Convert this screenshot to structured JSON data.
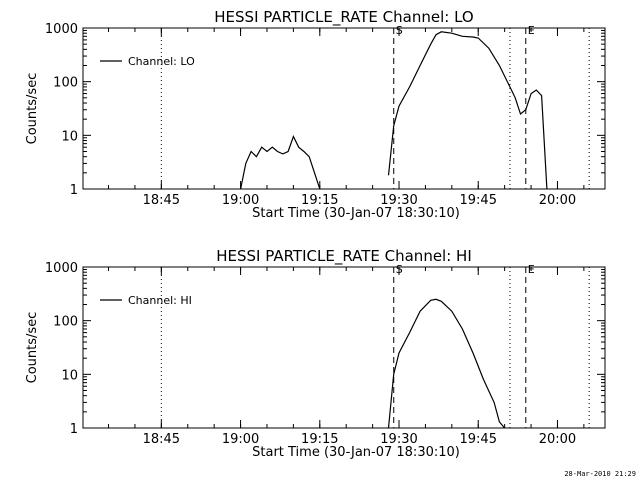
{
  "footer_timestamp": "28-Mar-2010 21:29",
  "chart_data": [
    {
      "type": "line",
      "title": "HESSI PARTICLE_RATE Channel: LO",
      "xlabel": "Start Time (30-Jan-07 18:30:10)",
      "ylabel": "Counts/sec",
      "y_scale": "log",
      "ylim": [
        1,
        1000
      ],
      "xlim": [
        "18:30:10",
        "20:09:00"
      ],
      "x_ticks": [
        "18:45",
        "19:00",
        "19:15",
        "19:30",
        "19:45",
        "20:00"
      ],
      "y_ticks": [
        "1",
        "10",
        "100",
        "1000"
      ],
      "legend": {
        "label": "Channel: LO",
        "position": "top-left"
      },
      "markers": [
        {
          "time": "18:45",
          "style": "dotted",
          "label": ""
        },
        {
          "time": "19:29",
          "style": "dashed",
          "label": "S"
        },
        {
          "time": "19:51",
          "style": "dotted",
          "label": ""
        },
        {
          "time": "19:54",
          "style": "dashed",
          "label": "E"
        },
        {
          "time": "20:06",
          "style": "dotted",
          "label": ""
        }
      ],
      "segments": [
        [
          [
            "19:00",
            1
          ],
          [
            "19:01",
            3
          ],
          [
            "19:02",
            5
          ],
          [
            "19:03",
            4
          ],
          [
            "19:04",
            6
          ],
          [
            "19:05",
            5
          ],
          [
            "19:06",
            6
          ],
          [
            "19:07",
            5
          ],
          [
            "19:08",
            4.5
          ],
          [
            "19:09",
            5
          ],
          [
            "19:10",
            9.5
          ],
          [
            "19:11",
            6
          ],
          [
            "19:12",
            5
          ],
          [
            "19:13",
            4
          ],
          [
            "19:14",
            2
          ],
          [
            "19:15",
            1
          ]
        ],
        [
          [
            "19:28",
            1.8
          ],
          [
            "19:29",
            15
          ],
          [
            "19:30",
            35
          ],
          [
            "19:32",
            80
          ],
          [
            "19:34",
            200
          ],
          [
            "19:36",
            500
          ],
          [
            "19:37",
            750
          ],
          [
            "19:38",
            850
          ],
          [
            "19:40",
            800
          ],
          [
            "19:42",
            700
          ],
          [
            "19:44",
            680
          ],
          [
            "19:45",
            650
          ],
          [
            "19:47",
            420
          ],
          [
            "19:49",
            200
          ],
          [
            "19:51",
            80
          ],
          [
            "19:52",
            50
          ],
          [
            "19:53",
            25
          ],
          [
            "19:54",
            30
          ],
          [
            "19:55",
            60
          ],
          [
            "19:56",
            70
          ],
          [
            "19:57",
            55
          ],
          [
            "19:58",
            1
          ]
        ]
      ]
    },
    {
      "type": "line",
      "title": "HESSI PARTICLE_RATE Channel: HI",
      "xlabel": "Start Time (30-Jan-07 18:30:10)",
      "ylabel": "Counts/sec",
      "y_scale": "log",
      "ylim": [
        1,
        1000
      ],
      "xlim": [
        "18:30:10",
        "20:09:00"
      ],
      "x_ticks": [
        "18:45",
        "19:00",
        "19:15",
        "19:30",
        "19:45",
        "20:00"
      ],
      "y_ticks": [
        "1",
        "10",
        "100",
        "1000"
      ],
      "legend": {
        "label": "Channel: HI",
        "position": "top-left"
      },
      "markers": [
        {
          "time": "18:45",
          "style": "dotted",
          "label": ""
        },
        {
          "time": "19:29",
          "style": "dashed",
          "label": "S"
        },
        {
          "time": "19:51",
          "style": "dotted",
          "label": ""
        },
        {
          "time": "19:54",
          "style": "dashed",
          "label": "E"
        },
        {
          "time": "20:06",
          "style": "dotted",
          "label": ""
        }
      ],
      "segments": [
        [
          [
            "19:28",
            1
          ],
          [
            "19:29",
            10
          ],
          [
            "19:30",
            25
          ],
          [
            "19:32",
            60
          ],
          [
            "19:34",
            150
          ],
          [
            "19:36",
            240
          ],
          [
            "19:37",
            250
          ],
          [
            "19:38",
            230
          ],
          [
            "19:40",
            150
          ],
          [
            "19:42",
            70
          ],
          [
            "19:44",
            25
          ],
          [
            "19:46",
            8
          ],
          [
            "19:48",
            3
          ],
          [
            "19:49",
            1.3
          ],
          [
            "19:50",
            1
          ]
        ]
      ]
    }
  ]
}
